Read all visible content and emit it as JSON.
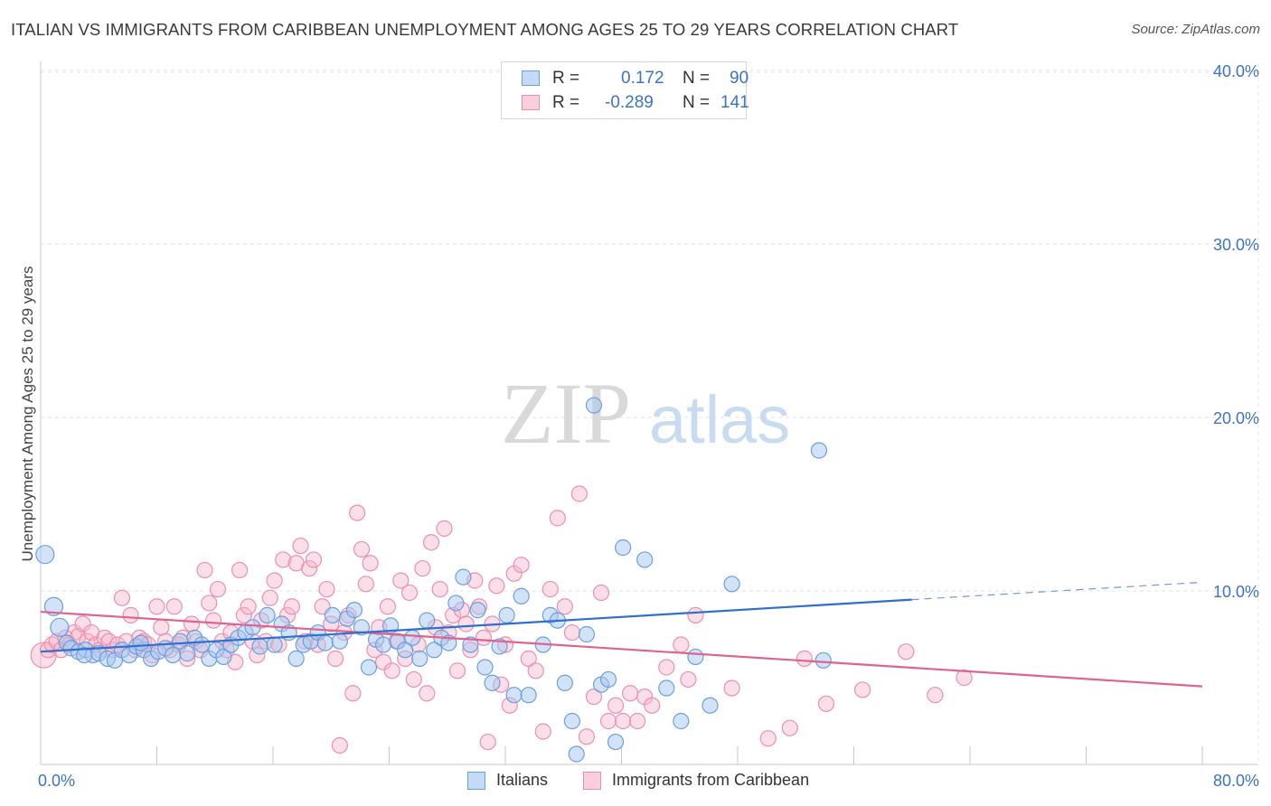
{
  "title": "ITALIAN VS IMMIGRANTS FROM CARIBBEAN UNEMPLOYMENT AMONG AGES 25 TO 29 YEARS CORRELATION CHART",
  "source": "Source: ZipAtlas.com",
  "watermark": {
    "zip": "ZIP",
    "atlas": "atlas"
  },
  "legend": {
    "rows": [
      {
        "r_label": "R =",
        "r_value": "0.172",
        "n_label": "N =",
        "n_value": "90"
      },
      {
        "r_label": "R =",
        "r_value": "-0.289",
        "n_label": "N =",
        "n_value": "141"
      }
    ]
  },
  "colors": {
    "blue_fill": "#a8c8f0",
    "blue_stroke": "#6b9fde",
    "blue_line": "#2e6fcf",
    "pink_fill": "#f7b8cb",
    "pink_stroke": "#ec8fae",
    "pink_line": "#e0628f",
    "tick_label": "#3b73c8",
    "grid": "#e6e6e6"
  },
  "chart_data": {
    "type": "scatter",
    "title": "ITALIAN VS IMMIGRANTS FROM CARIBBEAN UNEMPLOYMENT AMONG AGES 25 TO 29 YEARS CORRELATION CHART",
    "xlabel": "",
    "ylabel": "Unemployment Among Ages 25 to 29 years",
    "xlim": [
      0,
      80
    ],
    "ylim": [
      0,
      42
    ],
    "x_tick_labels": [
      "0.0%",
      "80.0%"
    ],
    "y_ticks": [
      10,
      20,
      30,
      40
    ],
    "y_tick_labels": [
      "10.0%",
      "20.0%",
      "30.0%",
      "40.0%"
    ],
    "grid": true,
    "legend_position": "bottom",
    "series": [
      {
        "name": "Italians",
        "r": 0.172,
        "n": 90,
        "trend": {
          "x0": 0,
          "y0": 6.5,
          "x1": 60,
          "y1": 9.5,
          "dash_to_x": 80,
          "dash_to_y": 10.5
        },
        "points": [
          [
            0.3,
            12.1
          ],
          [
            0.9,
            9.1
          ],
          [
            1.3,
            7.9
          ],
          [
            1.8,
            7.0
          ],
          [
            2.1,
            6.7
          ],
          [
            2.6,
            6.5
          ],
          [
            3.1,
            6.6
          ],
          [
            3.6,
            6.3
          ],
          [
            4.0,
            6.4
          ],
          [
            4.6,
            6.1
          ],
          [
            5.1,
            6.0
          ],
          [
            5.6,
            6.6
          ],
          [
            6.1,
            6.3
          ],
          [
            6.6,
            6.8
          ],
          [
            7.1,
            6.6
          ],
          [
            7.6,
            6.1
          ],
          [
            8.1,
            6.5
          ],
          [
            8.6,
            6.7
          ],
          [
            9.1,
            6.3
          ],
          [
            9.6,
            7.1
          ],
          [
            10.1,
            6.4
          ],
          [
            10.6,
            7.3
          ],
          [
            11.1,
            6.9
          ],
          [
            11.6,
            6.1
          ],
          [
            12.1,
            6.6
          ],
          [
            12.6,
            6.2
          ],
          [
            13.1,
            6.9
          ],
          [
            13.6,
            7.3
          ],
          [
            14.1,
            7.6
          ],
          [
            14.6,
            7.9
          ],
          [
            15.1,
            6.8
          ],
          [
            15.6,
            8.6
          ],
          [
            16.1,
            6.9
          ],
          [
            16.6,
            8.1
          ],
          [
            17.1,
            7.6
          ],
          [
            17.6,
            6.1
          ],
          [
            18.1,
            6.9
          ],
          [
            18.6,
            7.1
          ],
          [
            19.1,
            7.6
          ],
          [
            19.6,
            7.0
          ],
          [
            20.1,
            8.6
          ],
          [
            20.6,
            7.1
          ],
          [
            21.1,
            8.4
          ],
          [
            21.6,
            8.9
          ],
          [
            22.1,
            7.9
          ],
          [
            22.6,
            5.6
          ],
          [
            23.1,
            7.2
          ],
          [
            23.6,
            6.9
          ],
          [
            24.1,
            8.0
          ],
          [
            24.6,
            7.1
          ],
          [
            25.1,
            6.6
          ],
          [
            25.6,
            7.3
          ],
          [
            26.1,
            6.1
          ],
          [
            26.6,
            8.3
          ],
          [
            27.1,
            6.6
          ],
          [
            27.6,
            7.3
          ],
          [
            28.1,
            7.0
          ],
          [
            28.6,
            9.3
          ],
          [
            29.1,
            10.8
          ],
          [
            29.6,
            6.9
          ],
          [
            30.1,
            8.9
          ],
          [
            30.6,
            5.6
          ],
          [
            31.1,
            4.7
          ],
          [
            31.6,
            6.8
          ],
          [
            32.1,
            8.6
          ],
          [
            32.6,
            4.0
          ],
          [
            33.1,
            9.7
          ],
          [
            33.6,
            4.0
          ],
          [
            34.6,
            6.9
          ],
          [
            35.1,
            8.6
          ],
          [
            35.6,
            8.3
          ],
          [
            36.1,
            4.7
          ],
          [
            36.6,
            2.5
          ],
          [
            36.9,
            0.6
          ],
          [
            37.6,
            7.5
          ],
          [
            38.1,
            20.7
          ],
          [
            38.6,
            4.6
          ],
          [
            39.1,
            4.9
          ],
          [
            39.6,
            1.3
          ],
          [
            40.1,
            12.5
          ],
          [
            41.6,
            11.8
          ],
          [
            43.1,
            4.4
          ],
          [
            44.1,
            2.5
          ],
          [
            45.1,
            6.2
          ],
          [
            46.1,
            3.4
          ],
          [
            47.6,
            10.4
          ],
          [
            53.6,
            18.1
          ],
          [
            53.9,
            6.0
          ],
          [
            3.0,
            6.3
          ],
          [
            6.9,
            7.0
          ]
        ]
      },
      {
        "name": "Immigrants from Caribbean",
        "r": -0.289,
        "n": 141,
        "trend": {
          "x0": 0,
          "y0": 8.8,
          "x1": 80,
          "y1": 4.5
        },
        "points": [
          [
            0.2,
            6.3
          ],
          [
            0.5,
            6.6
          ],
          [
            0.8,
            6.9
          ],
          [
            1.1,
            7.1
          ],
          [
            1.4,
            6.6
          ],
          [
            1.7,
            7.3
          ],
          [
            2.0,
            6.9
          ],
          [
            2.3,
            7.6
          ],
          [
            2.6,
            7.4
          ],
          [
            2.9,
            8.1
          ],
          [
            3.2,
            7.1
          ],
          [
            3.5,
            7.6
          ],
          [
            3.8,
            6.9
          ],
          [
            4.1,
            6.6
          ],
          [
            4.4,
            7.3
          ],
          [
            4.7,
            7.1
          ],
          [
            5.0,
            6.6
          ],
          [
            5.3,
            6.9
          ],
          [
            5.6,
            9.6
          ],
          [
            5.9,
            7.1
          ],
          [
            6.2,
            8.6
          ],
          [
            6.5,
            6.6
          ],
          [
            6.8,
            7.3
          ],
          [
            7.1,
            7.1
          ],
          [
            7.4,
            6.9
          ],
          [
            7.7,
            6.3
          ],
          [
            8.0,
            9.1
          ],
          [
            8.3,
            7.9
          ],
          [
            8.6,
            7.1
          ],
          [
            8.9,
            6.6
          ],
          [
            9.2,
            9.1
          ],
          [
            9.5,
            6.9
          ],
          [
            9.8,
            7.3
          ],
          [
            10.1,
            6.1
          ],
          [
            10.4,
            8.1
          ],
          [
            10.7,
            7.1
          ],
          [
            11.0,
            6.6
          ],
          [
            11.3,
            11.2
          ],
          [
            11.6,
            9.3
          ],
          [
            11.9,
            8.3
          ],
          [
            12.2,
            10.1
          ],
          [
            12.5,
            7.1
          ],
          [
            12.8,
            6.6
          ],
          [
            13.1,
            7.6
          ],
          [
            13.4,
            5.9
          ],
          [
            13.7,
            11.2
          ],
          [
            14.0,
            8.6
          ],
          [
            14.3,
            9.1
          ],
          [
            14.6,
            7.1
          ],
          [
            14.9,
            6.3
          ],
          [
            15.2,
            8.3
          ],
          [
            15.5,
            7.1
          ],
          [
            15.8,
            9.6
          ],
          [
            16.1,
            10.6
          ],
          [
            16.4,
            6.9
          ],
          [
            16.7,
            11.8
          ],
          [
            17.0,
            8.6
          ],
          [
            17.3,
            9.1
          ],
          [
            17.6,
            11.6
          ],
          [
            17.9,
            12.6
          ],
          [
            18.2,
            7.1
          ],
          [
            18.5,
            11.3
          ],
          [
            18.8,
            11.8
          ],
          [
            19.1,
            6.9
          ],
          [
            19.4,
            9.1
          ],
          [
            19.7,
            10.1
          ],
          [
            20.0,
            8.1
          ],
          [
            20.3,
            6.1
          ],
          [
            20.6,
            1.1
          ],
          [
            20.9,
            7.6
          ],
          [
            21.2,
            8.6
          ],
          [
            21.5,
            4.1
          ],
          [
            21.8,
            14.5
          ],
          [
            22.1,
            12.4
          ],
          [
            22.4,
            10.4
          ],
          [
            22.7,
            11.6
          ],
          [
            23.0,
            6.6
          ],
          [
            23.3,
            7.9
          ],
          [
            23.6,
            5.9
          ],
          [
            23.9,
            9.1
          ],
          [
            24.2,
            5.4
          ],
          [
            24.5,
            7.1
          ],
          [
            24.8,
            10.6
          ],
          [
            25.1,
            6.1
          ],
          [
            25.4,
            9.9
          ],
          [
            25.7,
            4.9
          ],
          [
            26.0,
            6.9
          ],
          [
            26.3,
            11.3
          ],
          [
            26.6,
            4.1
          ],
          [
            26.9,
            12.8
          ],
          [
            27.2,
            7.9
          ],
          [
            27.5,
            10.1
          ],
          [
            27.8,
            13.6
          ],
          [
            28.1,
            7.6
          ],
          [
            28.4,
            8.6
          ],
          [
            28.7,
            5.4
          ],
          [
            29.0,
            8.9
          ],
          [
            29.3,
            8.1
          ],
          [
            29.6,
            6.6
          ],
          [
            29.9,
            10.6
          ],
          [
            30.2,
            9.1
          ],
          [
            30.5,
            7.3
          ],
          [
            30.8,
            1.3
          ],
          [
            31.1,
            8.1
          ],
          [
            31.4,
            10.3
          ],
          [
            31.7,
            4.6
          ],
          [
            32.0,
            6.9
          ],
          [
            32.3,
            3.4
          ],
          [
            32.6,
            11.0
          ],
          [
            33.1,
            11.5
          ],
          [
            33.6,
            6.1
          ],
          [
            34.1,
            5.4
          ],
          [
            34.6,
            1.9
          ],
          [
            35.1,
            10.1
          ],
          [
            35.6,
            14.2
          ],
          [
            36.1,
            9.1
          ],
          [
            36.6,
            7.6
          ],
          [
            37.1,
            15.6
          ],
          [
            37.6,
            1.6
          ],
          [
            38.1,
            3.9
          ],
          [
            38.6,
            9.9
          ],
          [
            39.1,
            2.5
          ],
          [
            39.6,
            3.4
          ],
          [
            40.1,
            2.5
          ],
          [
            40.6,
            4.1
          ],
          [
            41.1,
            2.5
          ],
          [
            41.6,
            3.9
          ],
          [
            42.1,
            3.4
          ],
          [
            43.1,
            5.6
          ],
          [
            44.1,
            6.9
          ],
          [
            44.6,
            4.9
          ],
          [
            45.1,
            8.6
          ],
          [
            47.6,
            4.4
          ],
          [
            50.1,
            1.5
          ],
          [
            51.6,
            2.1
          ],
          [
            52.6,
            6.1
          ],
          [
            54.1,
            3.5
          ],
          [
            56.6,
            4.3
          ],
          [
            59.6,
            6.5
          ],
          [
            61.6,
            4.0
          ],
          [
            63.6,
            5.0
          ]
        ]
      }
    ]
  },
  "bottom_legend": [
    "Italians",
    "Immigrants from Caribbean"
  ]
}
